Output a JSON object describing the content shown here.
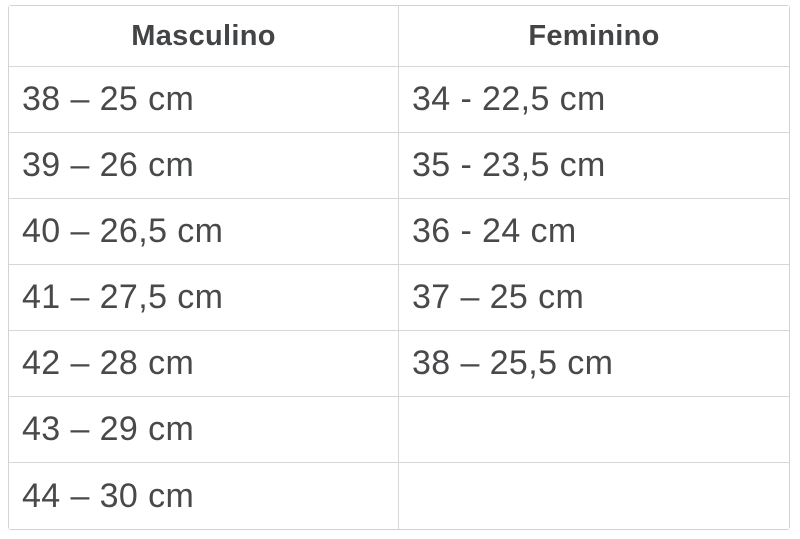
{
  "table": {
    "headers": {
      "masculino": "Masculino",
      "feminino": "Feminino"
    },
    "rows": [
      {
        "masculino": "38 – 25 cm",
        "feminino": "34 - 22,5 cm"
      },
      {
        "masculino": "39 – 26 cm",
        "feminino": "35 - 23,5 cm"
      },
      {
        "masculino": "40 – 26,5 cm",
        "feminino": "36 - 24 cm"
      },
      {
        "masculino": "41 – 27,5 cm",
        "feminino": "37 – 25 cm"
      },
      {
        "masculino": "42 – 28 cm",
        "feminino": "38 – 25,5 cm"
      },
      {
        "masculino": "43 – 29 cm",
        "feminino": ""
      },
      {
        "masculino": "44 – 30 cm",
        "feminino": ""
      }
    ],
    "colors": {
      "text": "#48494b",
      "header_text": "#434446",
      "border": "#d6d7d8",
      "background": "#ffffff"
    }
  },
  "chart_data": {
    "type": "table",
    "title": "",
    "columns": [
      "Masculino",
      "Feminino"
    ],
    "rows": [
      [
        "38 – 25 cm",
        "34 - 22,5 cm"
      ],
      [
        "39 – 26 cm",
        "35 - 23,5 cm"
      ],
      [
        "40 – 26,5 cm",
        "36 - 24 cm"
      ],
      [
        "41 – 27,5 cm",
        "37 – 25 cm"
      ],
      [
        "42 – 28 cm",
        "38 – 25,5 cm"
      ],
      [
        "43 – 29 cm",
        ""
      ],
      [
        "44 – 30 cm",
        ""
      ]
    ]
  }
}
